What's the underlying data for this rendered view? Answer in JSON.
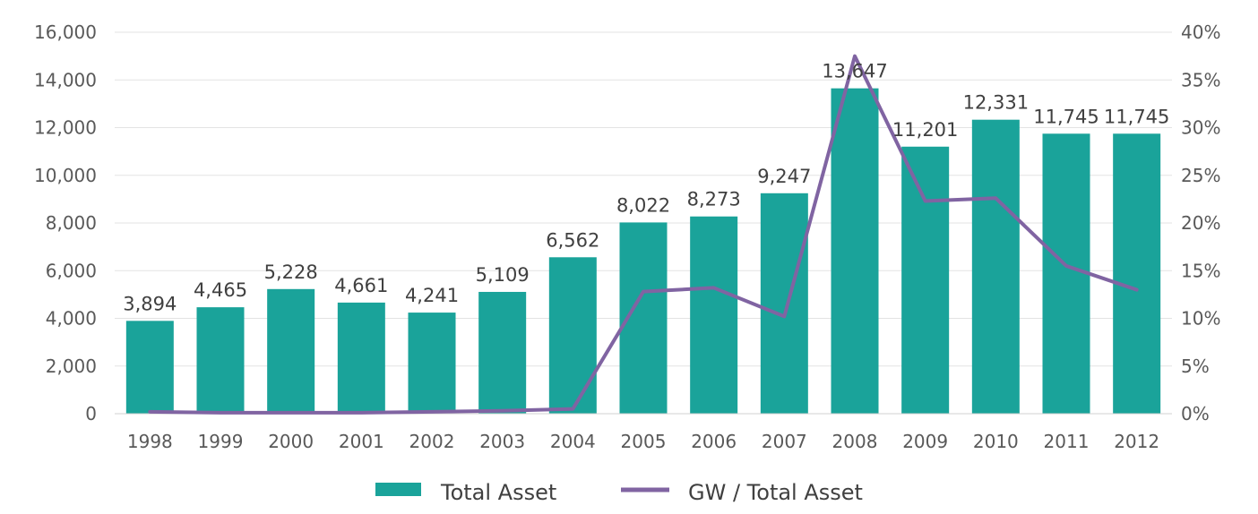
{
  "chart_data": {
    "type": "bar",
    "categories": [
      "1998",
      "1999",
      "2000",
      "2001",
      "2002",
      "2003",
      "2004",
      "2005",
      "2006",
      "2007",
      "2008",
      "2009",
      "2010",
      "2011",
      "2012"
    ],
    "series": [
      {
        "name": "Total Asset",
        "type": "bar",
        "axis": "left",
        "color": "#1aa39a",
        "values": [
          3894,
          4465,
          5228,
          4661,
          4241,
          5109,
          6562,
          8022,
          8273,
          9247,
          13647,
          11201,
          12331,
          11745,
          11745
        ],
        "labels": [
          "3,894",
          "4,465",
          "5,228",
          "4,661",
          "4,241",
          "5,109",
          "6,562",
          "8,022",
          "8,273",
          "9,247",
          "13,647",
          "11,201",
          "12,331",
          "11,745",
          "11,745"
        ]
      },
      {
        "name": "GW / Total Asset",
        "type": "line",
        "axis": "right",
        "color": "#8064a2",
        "values": [
          0.2,
          0.1,
          0.1,
          0.1,
          0.2,
          0.3,
          0.5,
          12.8,
          13.2,
          10.2,
          37.5,
          22.3,
          22.6,
          15.5,
          13.0
        ]
      }
    ],
    "y_left": {
      "min": 0,
      "max": 16000,
      "ticks": [
        "0",
        "2,000",
        "4,000",
        "6,000",
        "8,000",
        "10,000",
        "12,000",
        "14,000",
        "16,000"
      ]
    },
    "y_right": {
      "min": 0,
      "max": 40,
      "ticks": [
        "0%",
        "5%",
        "10%",
        "15%",
        "20%",
        "25%",
        "30%",
        "35%",
        "40%"
      ]
    },
    "grid": true,
    "legend": "bottom-center"
  }
}
